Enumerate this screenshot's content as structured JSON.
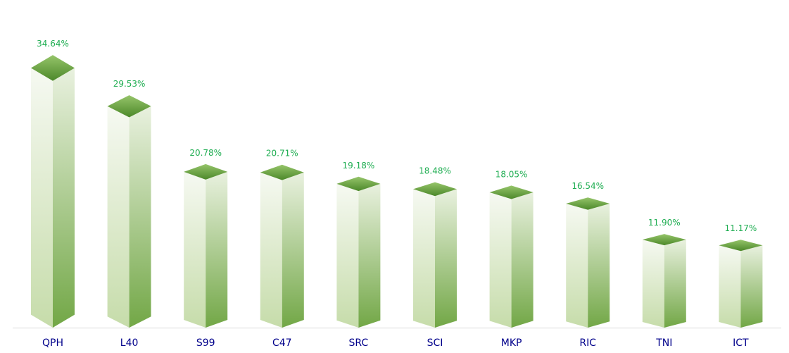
{
  "page": {
    "background": "#ffffff"
  },
  "chart_data": {
    "type": "bar",
    "variant": "3d-column",
    "title": "",
    "xlabel": "",
    "ylabel": "",
    "unit": "%",
    "grid": false,
    "legend": null,
    "ylim": [
      0,
      38
    ],
    "categories": [
      "QPH",
      "L40",
      "S99",
      "C47",
      "SRC",
      "SCI",
      "MKP",
      "RIC",
      "TNI",
      "ICT"
    ],
    "values": [
      34.64,
      29.53,
      20.78,
      20.71,
      19.18,
      18.48,
      18.05,
      16.54,
      11.9,
      11.17
    ],
    "value_labels": [
      "34.64%",
      "29.53%",
      "20.78%",
      "20.71%",
      "19.18%",
      "18.48%",
      "18.05%",
      "16.54%",
      "11.90%",
      "11.17%"
    ],
    "colors": {
      "cap_light": "#96c56a",
      "cap_dark": "#4c882a",
      "left_face_light": "#f6f9f2",
      "left_face_dark": "#c6dcaa",
      "right_face_light": "#e9f1df",
      "right_face_dark": "#72a746",
      "value_label": "#1ead51",
      "category_label": "#00008b",
      "axis_line": "#d9d9d9",
      "background": "#ffffff"
    }
  }
}
